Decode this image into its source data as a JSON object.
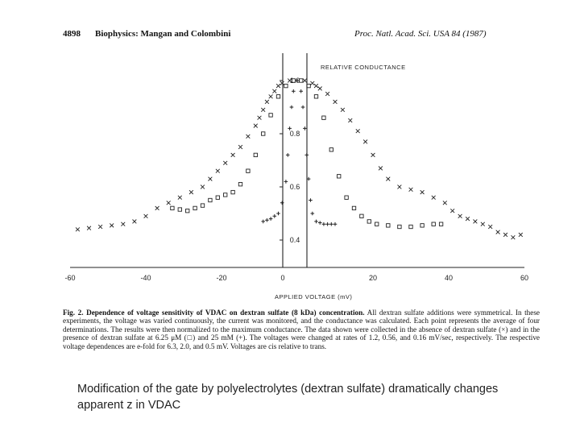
{
  "header": {
    "page_number": "4898",
    "article": "Biophysics: Mangan and Colombini",
    "journal": "Proc. Natl. Acad. Sci. USA 84 (1987)"
  },
  "chart_data": {
    "type": "scatter",
    "title": "",
    "xlabel": "APPLIED VOLTAGE (mV)",
    "ylabel": "RELATIVE CONDUCTANCE",
    "x_ticks": [
      "-60",
      "-40",
      "-20",
      "0",
      "20",
      "40",
      "60"
    ],
    "y_ticks": [
      "1.0",
      "0.8",
      "0.6",
      "0.4"
    ],
    "xlim": [
      -60,
      60
    ],
    "ylim": [
      0.33,
      1.06
    ],
    "series": [
      {
        "name": "no dextran sulfate",
        "marker": "x",
        "points": [
          [
            -58,
            0.44
          ],
          [
            -55,
            0.445
          ],
          [
            -52,
            0.45
          ],
          [
            -49,
            0.455
          ],
          [
            -46,
            0.46
          ],
          [
            -43,
            0.47
          ],
          [
            -40,
            0.49
          ],
          [
            -37,
            0.52
          ],
          [
            -34,
            0.54
          ],
          [
            -31,
            0.56
          ],
          [
            -28,
            0.58
          ],
          [
            -25,
            0.6
          ],
          [
            -23,
            0.63
          ],
          [
            -21,
            0.66
          ],
          [
            -19,
            0.69
          ],
          [
            -17,
            0.72
          ],
          [
            -15,
            0.75
          ],
          [
            -13,
            0.79
          ],
          [
            -11,
            0.83
          ],
          [
            -10,
            0.86
          ],
          [
            -9,
            0.89
          ],
          [
            -8,
            0.92
          ],
          [
            -7,
            0.94
          ],
          [
            -6,
            0.96
          ],
          [
            -5,
            0.98
          ],
          [
            -4,
            0.99
          ],
          [
            -2,
            1.0
          ],
          [
            2,
            1.0
          ],
          [
            4,
            0.99
          ],
          [
            5,
            0.98
          ],
          [
            6,
            0.97
          ],
          [
            8,
            0.95
          ],
          [
            10,
            0.92
          ],
          [
            12,
            0.89
          ],
          [
            14,
            0.85
          ],
          [
            16,
            0.81
          ],
          [
            18,
            0.77
          ],
          [
            20,
            0.72
          ],
          [
            22,
            0.67
          ],
          [
            24,
            0.63
          ],
          [
            27,
            0.6
          ],
          [
            30,
            0.59
          ],
          [
            33,
            0.58
          ],
          [
            36,
            0.56
          ],
          [
            39,
            0.54
          ],
          [
            41,
            0.51
          ],
          [
            43,
            0.49
          ],
          [
            45,
            0.48
          ],
          [
            47,
            0.47
          ],
          [
            49,
            0.46
          ],
          [
            51,
            0.45
          ],
          [
            53,
            0.43
          ],
          [
            55,
            0.42
          ],
          [
            57,
            0.41
          ],
          [
            59,
            0.42
          ]
        ]
      },
      {
        "name": "6.25 uM dextran sulfate",
        "marker": "square",
        "points": [
          [
            -33,
            0.52
          ],
          [
            -31,
            0.515
          ],
          [
            -29,
            0.51
          ],
          [
            -27,
            0.52
          ],
          [
            -25,
            0.53
          ],
          [
            -23,
            0.55
          ],
          [
            -21,
            0.56
          ],
          [
            -19,
            0.57
          ],
          [
            -17,
            0.58
          ],
          [
            -15,
            0.61
          ],
          [
            -13,
            0.66
          ],
          [
            -11,
            0.72
          ],
          [
            -9,
            0.8
          ],
          [
            -7,
            0.87
          ],
          [
            -5,
            0.94
          ],
          [
            -3,
            0.98
          ],
          [
            -1,
            1.0
          ],
          [
            1,
            1.0
          ],
          [
            3,
            0.98
          ],
          [
            5,
            0.94
          ],
          [
            7,
            0.86
          ],
          [
            9,
            0.74
          ],
          [
            11,
            0.64
          ],
          [
            13,
            0.56
          ],
          [
            15,
            0.52
          ],
          [
            17,
            0.49
          ],
          [
            19,
            0.47
          ],
          [
            21,
            0.46
          ],
          [
            24,
            0.455
          ],
          [
            27,
            0.45
          ],
          [
            30,
            0.45
          ],
          [
            33,
            0.455
          ],
          [
            36,
            0.46
          ],
          [
            38,
            0.46
          ]
        ]
      },
      {
        "name": "25 mM dextran sulfate",
        "marker": "plus",
        "points": [
          [
            -9,
            0.47
          ],
          [
            -8,
            0.475
          ],
          [
            -7,
            0.48
          ],
          [
            -6,
            0.49
          ],
          [
            -5,
            0.5
          ],
          [
            -4,
            0.54
          ],
          [
            -3,
            0.62
          ],
          [
            -2.5,
            0.72
          ],
          [
            -2,
            0.82
          ],
          [
            -1.5,
            0.9
          ],
          [
            -1,
            0.96
          ],
          [
            0,
            1.0
          ],
          [
            1,
            0.96
          ],
          [
            1.5,
            0.9
          ],
          [
            2,
            0.82
          ],
          [
            2.5,
            0.72
          ],
          [
            3,
            0.63
          ],
          [
            3.5,
            0.55
          ],
          [
            4,
            0.5
          ],
          [
            5,
            0.47
          ],
          [
            6,
            0.465
          ],
          [
            7,
            0.46
          ],
          [
            8,
            0.46
          ],
          [
            9,
            0.46
          ],
          [
            10,
            0.46
          ]
        ]
      }
    ]
  },
  "caption": {
    "label": "Fig. 2.",
    "heading": "Dependence of voltage sensitivity of VDAC on dextran sulfate (8 kDa) concentration.",
    "text": "All dextran sulfate additions were symmetrical. In these experiments, the voltage was varied continuously, the current was monitored, and the conductance was calculated. Each point represents the average of four determinations. The results were then normalized to the maximum conductance. The data shown were collected in the absence of dextran sulfate (×) and in the presence of dextran sulfate at 6.25 μM (□) and 25 mM (+). The voltages were changed at rates of 1.2, 0.56, and 0.16 mV/sec, respectively. The respective voltage dependences are e-fold for 6.3, 2.0, and 0.5 mV. Voltages are cis relative to trans."
  },
  "slide_caption": "Modification of the gate by polyelectrolytes (dextran sulfate) dramatically changes apparent z in VDAC"
}
